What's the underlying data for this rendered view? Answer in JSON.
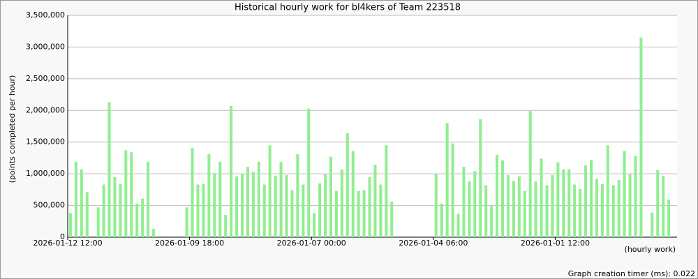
{
  "chart_data": {
    "type": "bar",
    "title": "Historical hourly work for bl4kers of Team 223518",
    "y_label": "(points completed per hour)",
    "x_label": "(hourly work)",
    "footer": "Graph creation timer (ms): 0.022",
    "color": "#90ee90",
    "grid": true,
    "ylim": [
      0,
      3500000
    ],
    "yticks": [
      0,
      {
        "value": 500000,
        "label": "500,000"
      },
      {
        "value": 1000000,
        "label": "1,000,000"
      },
      {
        "value": 1500000,
        "label": "1,500,000"
      },
      {
        "value": 2000000,
        "label": "2,000,000"
      },
      {
        "value": 2500000,
        "label": "2,500,000"
      },
      {
        "value": 3000000,
        "label": "3,000,000"
      },
      {
        "value": 3500000,
        "label": "3,500,000"
      }
    ],
    "categories": [
      "2026-01-12 12:00",
      null,
      null,
      null,
      null,
      null,
      null,
      null,
      null,
      null,
      null,
      null,
      null,
      null,
      null,
      null,
      null,
      null,
      null,
      null,
      null,
      null,
      "2026-01-09 18:00",
      null,
      null,
      null,
      null,
      null,
      null,
      null,
      null,
      null,
      null,
      null,
      null,
      null,
      null,
      null,
      null,
      null,
      null,
      null,
      null,
      null,
      "2026-01-07 00:00",
      null,
      null,
      null,
      null,
      null,
      null,
      null,
      null,
      null,
      null,
      null,
      null,
      null,
      null,
      null,
      null,
      null,
      null,
      null,
      null,
      null,
      "2026-01-04 06:00",
      null,
      null,
      null,
      null,
      null,
      null,
      null,
      null,
      null,
      null,
      null,
      null,
      null,
      null,
      null,
      null,
      null,
      null,
      null,
      null,
      null,
      "2026-01-01 12:00",
      null,
      null,
      null,
      null,
      null,
      null,
      null,
      null,
      null,
      null,
      null,
      null,
      null,
      null,
      null,
      null,
      null,
      null,
      null,
      null,
      null
    ],
    "values": [
      380000,
      1190000,
      1070000,
      710000,
      null,
      470000,
      830000,
      2130000,
      950000,
      840000,
      1370000,
      1340000,
      530000,
      610000,
      1190000,
      130000,
      null,
      null,
      null,
      null,
      null,
      470000,
      1410000,
      830000,
      840000,
      1310000,
      1010000,
      1190000,
      350000,
      2070000,
      960000,
      1000000,
      1110000,
      1030000,
      1190000,
      830000,
      1450000,
      970000,
      1190000,
      980000,
      740000,
      1310000,
      830000,
      2030000,
      380000,
      850000,
      990000,
      1270000,
      730000,
      1070000,
      1640000,
      1360000,
      730000,
      740000,
      950000,
      1140000,
      830000,
      1450000,
      560000,
      null,
      null,
      null,
      null,
      null,
      null,
      null,
      1000000,
      530000,
      1800000,
      1480000,
      370000,
      1110000,
      880000,
      1040000,
      1860000,
      820000,
      490000,
      1300000,
      1210000,
      980000,
      890000,
      960000,
      730000,
      1990000,
      880000,
      1240000,
      820000,
      980000,
      1180000,
      1070000,
      1070000,
      830000,
      760000,
      1130000,
      1220000,
      920000,
      840000,
      1450000,
      820000,
      900000,
      1360000,
      990000,
      1280000,
      3150000,
      null,
      390000,
      1060000,
      970000,
      590000,
      null
    ]
  }
}
